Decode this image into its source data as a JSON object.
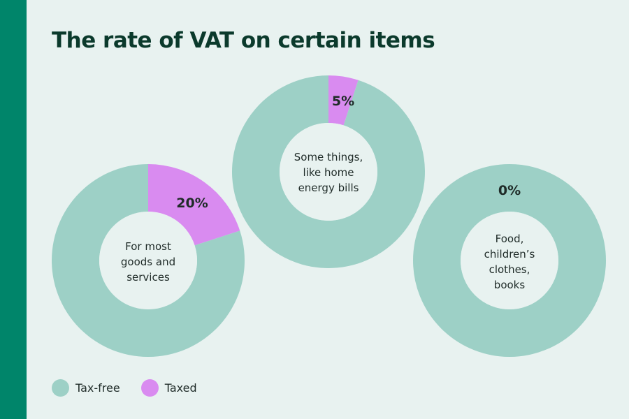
{
  "colors": {
    "background": "#e8f2f0",
    "accent_bar": "#00856a",
    "tax_free": "#9dd0c6",
    "taxed": "#d98bf0",
    "title": "#0b3a2c"
  },
  "chart_data": {
    "type": "pie",
    "title": "The rate of VAT on certain items",
    "legend": [
      {
        "name": "Tax-free",
        "color": "#9dd0c6"
      },
      {
        "name": "Taxed",
        "color": "#d98bf0"
      }
    ],
    "charts": [
      {
        "label_lines": [
          "For most",
          "goods and",
          "services"
        ],
        "rate_label": "20%",
        "slices": [
          {
            "name": "Taxed",
            "value": 20
          },
          {
            "name": "Tax-free",
            "value": 80
          }
        ]
      },
      {
        "label_lines": [
          "Some things,",
          "like home",
          "energy bills"
        ],
        "rate_label": "5%",
        "slices": [
          {
            "name": "Taxed",
            "value": 5
          },
          {
            "name": "Tax-free",
            "value": 95
          }
        ]
      },
      {
        "label_lines": [
          "Food,",
          "children’s",
          "clothes,",
          "books"
        ],
        "rate_label": "0%",
        "slices": [
          {
            "name": "Taxed",
            "value": 0
          },
          {
            "name": "Tax-free",
            "value": 100
          }
        ]
      }
    ]
  }
}
